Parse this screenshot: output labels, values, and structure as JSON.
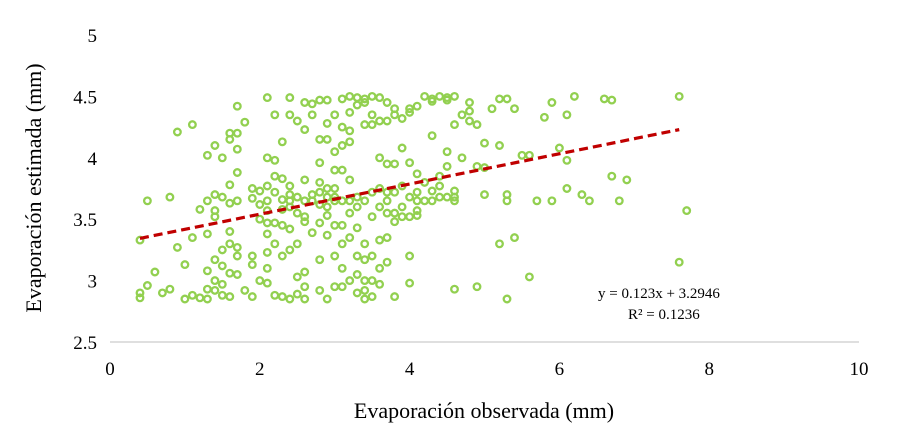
{
  "chart_data": {
    "type": "scatter",
    "title": "",
    "xlabel": "Evaporación observada (mm)",
    "ylabel": "Evaporación estimada (mm)",
    "xlim": [
      0,
      10
    ],
    "ylim": [
      2.5,
      5
    ],
    "xticks": [
      "0",
      "2",
      "4",
      "6",
      "8",
      "10"
    ],
    "yticks": [
      "2.5",
      "3",
      "3.5",
      "4",
      "4.5",
      "5"
    ],
    "grid": false,
    "marker_color": "#92D050",
    "trendline_color": "#C00000",
    "trendline": {
      "slope": 0.123,
      "intercept": 3.2946,
      "x_range": [
        0.4,
        7.6
      ]
    },
    "annotations": [
      "y = 0.123x + 3.2946",
      "R² = 0.1236"
    ],
    "points": [
      [
        0.4,
        3.33
      ],
      [
        0.4,
        2.9
      ],
      [
        0.4,
        2.86
      ],
      [
        0.5,
        2.96
      ],
      [
        0.5,
        3.65
      ],
      [
        0.6,
        3.07
      ],
      [
        0.7,
        2.9
      ],
      [
        0.8,
        3.68
      ],
      [
        0.8,
        2.93
      ],
      [
        0.9,
        4.21
      ],
      [
        0.9,
        3.27
      ],
      [
        1.0,
        3.13
      ],
      [
        1.0,
        2.85
      ],
      [
        1.1,
        4.27
      ],
      [
        1.1,
        3.35
      ],
      [
        1.1,
        2.88
      ],
      [
        1.2,
        3.58
      ],
      [
        1.2,
        2.86
      ],
      [
        1.3,
        4.02
      ],
      [
        1.3,
        3.65
      ],
      [
        1.3,
        3.38
      ],
      [
        1.3,
        3.08
      ],
      [
        1.3,
        2.85
      ],
      [
        1.3,
        2.93
      ],
      [
        1.4,
        4.1
      ],
      [
        1.4,
        3.7
      ],
      [
        1.4,
        3.57
      ],
      [
        1.4,
        3.52
      ],
      [
        1.4,
        3.0
      ],
      [
        1.4,
        3.17
      ],
      [
        1.4,
        2.92
      ],
      [
        1.5,
        4.0
      ],
      [
        1.5,
        3.68
      ],
      [
        1.5,
        3.25
      ],
      [
        1.5,
        3.12
      ],
      [
        1.5,
        2.88
      ],
      [
        1.5,
        2.97
      ],
      [
        1.6,
        4.2
      ],
      [
        1.6,
        4.15
      ],
      [
        1.6,
        3.78
      ],
      [
        1.6,
        3.63
      ],
      [
        1.6,
        3.4
      ],
      [
        1.6,
        3.3
      ],
      [
        1.6,
        3.06
      ],
      [
        1.6,
        2.87
      ],
      [
        1.7,
        4.42
      ],
      [
        1.7,
        4.2
      ],
      [
        1.7,
        4.07
      ],
      [
        1.7,
        3.88
      ],
      [
        1.7,
        3.65
      ],
      [
        1.7,
        3.27
      ],
      [
        1.7,
        3.2
      ],
      [
        1.7,
        3.05
      ],
      [
        1.8,
        4.29
      ],
      [
        1.8,
        2.92
      ],
      [
        1.9,
        3.75
      ],
      [
        1.9,
        3.67
      ],
      [
        1.9,
        3.2
      ],
      [
        1.9,
        3.13
      ],
      [
        1.9,
        2.87
      ],
      [
        2.0,
        3.73
      ],
      [
        2.0,
        3.62
      ],
      [
        2.0,
        3.5
      ],
      [
        2.0,
        3.0
      ],
      [
        2.1,
        4.49
      ],
      [
        2.1,
        4.0
      ],
      [
        2.1,
        3.77
      ],
      [
        2.1,
        3.65
      ],
      [
        2.1,
        3.57
      ],
      [
        2.1,
        3.47
      ],
      [
        2.1,
        3.38
      ],
      [
        2.1,
        3.23
      ],
      [
        2.1,
        3.1
      ],
      [
        2.1,
        2.98
      ],
      [
        2.2,
        4.35
      ],
      [
        2.2,
        3.98
      ],
      [
        2.2,
        3.85
      ],
      [
        2.2,
        3.72
      ],
      [
        2.2,
        3.47
      ],
      [
        2.2,
        3.3
      ],
      [
        2.2,
        2.88
      ],
      [
        2.3,
        4.13
      ],
      [
        2.3,
        3.83
      ],
      [
        2.3,
        3.66
      ],
      [
        2.3,
        3.58
      ],
      [
        2.3,
        3.45
      ],
      [
        2.3,
        3.2
      ],
      [
        2.3,
        2.87
      ],
      [
        2.4,
        4.49
      ],
      [
        2.4,
        4.35
      ],
      [
        2.4,
        3.77
      ],
      [
        2.4,
        3.7
      ],
      [
        2.4,
        3.65
      ],
      [
        2.4,
        3.6
      ],
      [
        2.4,
        3.42
      ],
      [
        2.4,
        3.25
      ],
      [
        2.4,
        2.85
      ],
      [
        2.5,
        4.3
      ],
      [
        2.5,
        3.68
      ],
      [
        2.5,
        3.55
      ],
      [
        2.5,
        3.3
      ],
      [
        2.5,
        3.03
      ],
      [
        2.5,
        2.89
      ],
      [
        2.6,
        4.45
      ],
      [
        2.6,
        4.23
      ],
      [
        2.6,
        3.82
      ],
      [
        2.6,
        3.65
      ],
      [
        2.6,
        3.52
      ],
      [
        2.6,
        3.48
      ],
      [
        2.6,
        3.07
      ],
      [
        2.6,
        2.95
      ],
      [
        2.6,
        2.85
      ],
      [
        2.7,
        4.44
      ],
      [
        2.7,
        4.35
      ],
      [
        2.7,
        3.7
      ],
      [
        2.7,
        3.65
      ],
      [
        2.7,
        3.39
      ],
      [
        2.8,
        4.47
      ],
      [
        2.8,
        4.15
      ],
      [
        2.8,
        3.96
      ],
      [
        2.8,
        3.8
      ],
      [
        2.8,
        3.72
      ],
      [
        2.8,
        3.62
      ],
      [
        2.8,
        3.47
      ],
      [
        2.8,
        3.17
      ],
      [
        2.8,
        2.92
      ],
      [
        2.9,
        4.47
      ],
      [
        2.9,
        4.28
      ],
      [
        2.9,
        4.15
      ],
      [
        2.9,
        3.75
      ],
      [
        2.9,
        3.68
      ],
      [
        2.9,
        3.6
      ],
      [
        2.9,
        3.53
      ],
      [
        2.9,
        3.37
      ],
      [
        2.9,
        2.85
      ],
      [
        3.0,
        4.35
      ],
      [
        3.0,
        4.05
      ],
      [
        3.0,
        3.9
      ],
      [
        3.0,
        3.75
      ],
      [
        3.0,
        3.68
      ],
      [
        3.0,
        3.65
      ],
      [
        3.0,
        3.45
      ],
      [
        3.0,
        3.2
      ],
      [
        3.0,
        2.95
      ],
      [
        3.1,
        4.48
      ],
      [
        3.1,
        4.25
      ],
      [
        3.1,
        4.1
      ],
      [
        3.1,
        3.9
      ],
      [
        3.1,
        3.65
      ],
      [
        3.1,
        3.45
      ],
      [
        3.1,
        3.3
      ],
      [
        3.1,
        3.1
      ],
      [
        3.1,
        2.95
      ],
      [
        3.2,
        4.5
      ],
      [
        3.2,
        4.37
      ],
      [
        3.2,
        4.22
      ],
      [
        3.2,
        4.13
      ],
      [
        3.2,
        3.82
      ],
      [
        3.2,
        3.65
      ],
      [
        3.2,
        3.55
      ],
      [
        3.2,
        3.35
      ],
      [
        3.2,
        3.0
      ],
      [
        3.3,
        4.49
      ],
      [
        3.3,
        4.43
      ],
      [
        3.3,
        3.68
      ],
      [
        3.3,
        3.6
      ],
      [
        3.3,
        3.43
      ],
      [
        3.3,
        3.2
      ],
      [
        3.3,
        3.05
      ],
      [
        3.3,
        2.9
      ],
      [
        3.4,
        4.48
      ],
      [
        3.4,
        4.45
      ],
      [
        3.4,
        4.27
      ],
      [
        3.4,
        3.65
      ],
      [
        3.4,
        3.3
      ],
      [
        3.4,
        3.17
      ],
      [
        3.4,
        3.0
      ],
      [
        3.4,
        2.92
      ],
      [
        3.4,
        2.85
      ],
      [
        3.5,
        4.5
      ],
      [
        3.5,
        4.35
      ],
      [
        3.5,
        4.27
      ],
      [
        3.5,
        3.72
      ],
      [
        3.5,
        3.52
      ],
      [
        3.5,
        3.2
      ],
      [
        3.5,
        3.0
      ],
      [
        3.5,
        2.87
      ],
      [
        3.6,
        4.49
      ],
      [
        3.6,
        4.3
      ],
      [
        3.6,
        4.0
      ],
      [
        3.6,
        3.75
      ],
      [
        3.6,
        3.6
      ],
      [
        3.6,
        3.33
      ],
      [
        3.6,
        3.1
      ],
      [
        3.6,
        2.97
      ],
      [
        3.7,
        4.45
      ],
      [
        3.7,
        4.3
      ],
      [
        3.7,
        3.95
      ],
      [
        3.7,
        3.72
      ],
      [
        3.7,
        3.65
      ],
      [
        3.7,
        3.55
      ],
      [
        3.7,
        3.35
      ],
      [
        3.7,
        3.15
      ],
      [
        3.8,
        4.4
      ],
      [
        3.8,
        4.35
      ],
      [
        3.8,
        3.95
      ],
      [
        3.8,
        3.72
      ],
      [
        3.8,
        3.55
      ],
      [
        3.8,
        3.48
      ],
      [
        3.8,
        2.87
      ],
      [
        3.9,
        4.32
      ],
      [
        3.9,
        4.08
      ],
      [
        3.9,
        3.77
      ],
      [
        3.9,
        3.6
      ],
      [
        3.9,
        3.52
      ],
      [
        4.0,
        4.4
      ],
      [
        4.0,
        4.37
      ],
      [
        4.0,
        3.96
      ],
      [
        4.0,
        3.68
      ],
      [
        4.0,
        3.52
      ],
      [
        4.0,
        3.2
      ],
      [
        4.0,
        2.98
      ],
      [
        4.1,
        4.42
      ],
      [
        4.1,
        3.87
      ],
      [
        4.1,
        3.72
      ],
      [
        4.1,
        3.65
      ],
      [
        4.1,
        3.57
      ],
      [
        4.1,
        3.53
      ],
      [
        4.2,
        4.5
      ],
      [
        4.2,
        3.8
      ],
      [
        4.2,
        3.65
      ],
      [
        4.3,
        4.48
      ],
      [
        4.3,
        4.46
      ],
      [
        4.3,
        4.18
      ],
      [
        4.3,
        3.73
      ],
      [
        4.3,
        3.65
      ],
      [
        4.4,
        4.5
      ],
      [
        4.4,
        3.85
      ],
      [
        4.4,
        3.77
      ],
      [
        4.4,
        3.68
      ],
      [
        4.5,
        4.49
      ],
      [
        4.5,
        4.47
      ],
      [
        4.5,
        4.05
      ],
      [
        4.5,
        3.93
      ],
      [
        4.5,
        3.68
      ],
      [
        4.6,
        4.5
      ],
      [
        4.6,
        4.27
      ],
      [
        4.6,
        3.73
      ],
      [
        4.6,
        3.68
      ],
      [
        4.6,
        3.65
      ],
      [
        4.6,
        2.93
      ],
      [
        4.7,
        4.35
      ],
      [
        4.7,
        4.0
      ],
      [
        4.8,
        4.45
      ],
      [
        4.8,
        4.38
      ],
      [
        4.8,
        4.3
      ],
      [
        4.9,
        4.27
      ],
      [
        4.9,
        3.93
      ],
      [
        4.9,
        2.95
      ],
      [
        5.0,
        4.12
      ],
      [
        5.0,
        3.92
      ],
      [
        5.0,
        3.7
      ],
      [
        5.1,
        4.4
      ],
      [
        5.2,
        4.48
      ],
      [
        5.2,
        4.1
      ],
      [
        5.2,
        3.3
      ],
      [
        5.3,
        4.48
      ],
      [
        5.3,
        3.7
      ],
      [
        5.3,
        3.65
      ],
      [
        5.3,
        2.85
      ],
      [
        5.4,
        4.4
      ],
      [
        5.4,
        3.35
      ],
      [
        5.5,
        4.02
      ],
      [
        5.6,
        4.02
      ],
      [
        5.6,
        3.03
      ],
      [
        5.7,
        3.65
      ],
      [
        5.8,
        4.33
      ],
      [
        5.9,
        4.45
      ],
      [
        5.9,
        3.65
      ],
      [
        6.0,
        4.08
      ],
      [
        6.1,
        4.35
      ],
      [
        6.1,
        3.98
      ],
      [
        6.1,
        3.75
      ],
      [
        6.2,
        4.5
      ],
      [
        6.3,
        3.7
      ],
      [
        6.4,
        3.65
      ],
      [
        6.6,
        4.48
      ],
      [
        6.7,
        4.47
      ],
      [
        6.7,
        3.85
      ],
      [
        6.8,
        3.65
      ],
      [
        6.9,
        3.82
      ],
      [
        7.6,
        4.5
      ],
      [
        7.6,
        3.15
      ],
      [
        7.7,
        3.57
      ]
    ]
  }
}
